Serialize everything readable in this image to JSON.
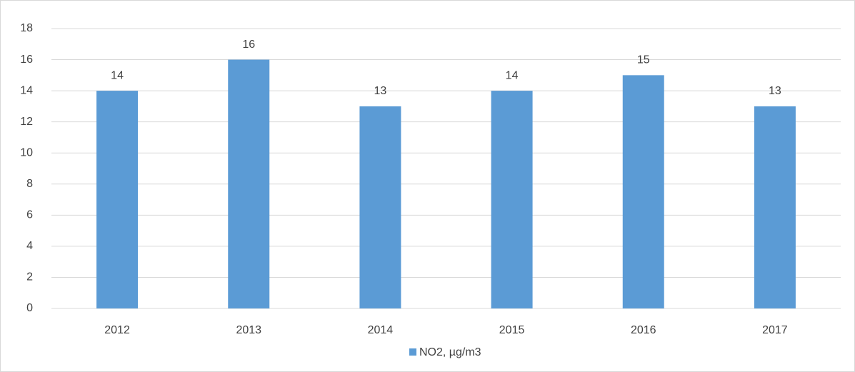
{
  "chart_data": {
    "type": "bar",
    "categories": [
      "2012",
      "2013",
      "2014",
      "2015",
      "2016",
      "2017"
    ],
    "series": [
      {
        "name": "NO2, µg/m3",
        "color": "#5b9bd5",
        "values": [
          14,
          16,
          13,
          14,
          15,
          13
        ]
      }
    ],
    "ylim": [
      0,
      18
    ],
    "yticks": [
      0,
      2,
      4,
      6,
      8,
      10,
      12,
      14,
      16,
      18
    ],
    "grid": true,
    "legend": "bottom",
    "data_labels": true
  }
}
